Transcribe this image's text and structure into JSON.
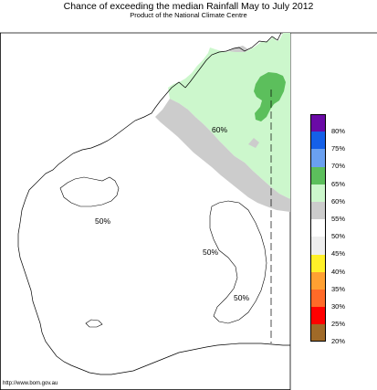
{
  "title": "Chance of exceeding the median Rainfall May to July 2012",
  "subtitle": "Product of the National Climate Centre",
  "footer_url": "http://www.bom.gov.au",
  "contour_labels": [
    "60%",
    "50%",
    "50%",
    "50%"
  ],
  "legend": [
    {
      "label": "80%",
      "color": "#6a0aa6"
    },
    {
      "label": "75%",
      "color": "#1560e8"
    },
    {
      "label": "70%",
      "color": "#6aa0f0"
    },
    {
      "label": "65%",
      "color": "#5cbf5c"
    },
    {
      "label": "60%",
      "color": "#ccf7cc"
    },
    {
      "label": "55%",
      "color": "#cccccc"
    },
    {
      "label": "50%",
      "color": "#ffffff"
    },
    {
      "label": "45%",
      "color": "#eeeeee"
    },
    {
      "label": "40%",
      "color": "#fff028"
    },
    {
      "label": "35%",
      "color": "#ffa032"
    },
    {
      "label": "30%",
      "color": "#ff6a28"
    },
    {
      "label": "25%",
      "color": "#ff0000"
    },
    {
      "label": "20%",
      "color": "#a06a28"
    }
  ],
  "region_colors": {
    "green_light": "#ccf7cc",
    "green_mid": "#5cbf5c",
    "grey": "#cccccc"
  }
}
